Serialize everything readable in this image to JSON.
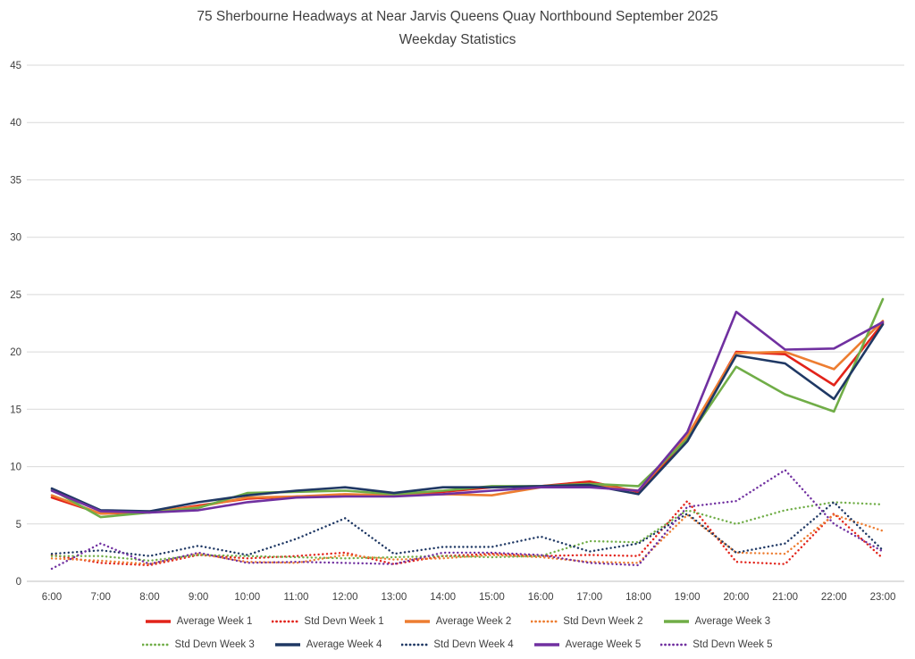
{
  "title": {
    "line1": "75 Sherbourne Headways at Near Jarvis Queens Quay Northbound September 2025",
    "line2": "Weekday Statistics"
  },
  "chart_data": {
    "type": "line",
    "title": "75 Sherbourne Headways at Near Jarvis Queens Quay Northbound September 2025 Weekday Statistics",
    "xlabel": "",
    "ylabel": "",
    "ylim": [
      0,
      45
    ],
    "ytick_step": 5,
    "grid": "horizontal",
    "legend_position": "bottom",
    "categories": [
      "6:00",
      "7:00",
      "8:00",
      "9:00",
      "10:00",
      "11:00",
      "12:00",
      "13:00",
      "14:00",
      "15:00",
      "16:00",
      "17:00",
      "18:00",
      "19:00",
      "20:00",
      "21:00",
      "22:00",
      "23:00"
    ],
    "series": [
      {
        "name": "Average Week 1",
        "color": "#e2231a",
        "dash": "solid",
        "values": [
          7.3,
          5.9,
          6.0,
          6.6,
          7.2,
          7.4,
          7.5,
          7.5,
          7.8,
          8.2,
          8.3,
          8.7,
          7.8,
          12.5,
          20.0,
          19.8,
          17.1,
          22.5
        ]
      },
      {
        "name": "Std Devn Week 1",
        "color": "#e2231a",
        "dash": "dotted",
        "values": [
          2.3,
          1.6,
          1.4,
          2.3,
          2.0,
          2.2,
          2.5,
          1.5,
          2.2,
          2.4,
          2.2,
          2.3,
          2.2,
          7.0,
          1.7,
          1.5,
          5.9,
          2.0
        ]
      },
      {
        "name": "Average Week 2",
        "color": "#ed7d31",
        "dash": "solid",
        "values": [
          7.5,
          5.9,
          6.1,
          6.5,
          7.3,
          7.4,
          7.6,
          7.5,
          7.6,
          7.5,
          8.2,
          8.4,
          7.9,
          12.7,
          19.9,
          20.0,
          18.5,
          22.7
        ]
      },
      {
        "name": "Std Devn Week 2",
        "color": "#ed7d31",
        "dash": "dotted",
        "values": [
          2.0,
          1.8,
          1.5,
          2.4,
          1.7,
          1.6,
          2.3,
          1.9,
          2.0,
          2.3,
          2.1,
          1.7,
          1.6,
          5.8,
          2.5,
          2.4,
          5.8,
          4.4
        ]
      },
      {
        "name": "Average Week 3",
        "color": "#70ad47",
        "dash": "solid",
        "values": [
          8.0,
          5.6,
          6.0,
          6.4,
          7.7,
          7.8,
          7.9,
          7.6,
          7.9,
          8.3,
          8.3,
          8.5,
          8.3,
          12.4,
          18.7,
          16.3,
          14.8,
          24.6
        ]
      },
      {
        "name": "Std Devn Week 3",
        "color": "#70ad47",
        "dash": "dotted",
        "values": [
          2.2,
          2.2,
          1.8,
          2.3,
          2.2,
          2.1,
          2.0,
          2.1,
          2.2,
          2.1,
          2.2,
          3.5,
          3.4,
          6.2,
          5.0,
          6.2,
          6.9,
          6.7
        ]
      },
      {
        "name": "Average Week 4",
        "color": "#1f3864",
        "dash": "solid",
        "values": [
          8.1,
          6.2,
          6.1,
          6.9,
          7.5,
          7.9,
          8.2,
          7.7,
          8.2,
          8.2,
          8.3,
          8.4,
          7.6,
          12.2,
          19.7,
          19.0,
          15.9,
          22.4
        ]
      },
      {
        "name": "Std Devn Week 4",
        "color": "#1f3864",
        "dash": "dotted",
        "values": [
          2.4,
          2.7,
          2.2,
          3.1,
          2.3,
          3.7,
          5.5,
          2.4,
          3.0,
          3.0,
          3.9,
          2.6,
          3.3,
          5.9,
          2.5,
          3.3,
          6.9,
          2.7
        ]
      },
      {
        "name": "Average Week 5",
        "color": "#7030a0",
        "dash": "solid",
        "values": [
          7.9,
          6.1,
          6.0,
          6.2,
          6.9,
          7.3,
          7.4,
          7.4,
          7.6,
          7.9,
          8.2,
          8.2,
          7.9,
          13.0,
          23.5,
          20.2,
          20.3,
          22.6
        ]
      },
      {
        "name": "Std Devn Week 5",
        "color": "#7030a0",
        "dash": "dotted",
        "values": [
          1.1,
          3.3,
          1.5,
          2.5,
          1.6,
          1.7,
          1.6,
          1.5,
          2.5,
          2.5,
          2.3,
          1.6,
          1.4,
          6.5,
          7.0,
          9.7,
          5.0,
          2.6
        ]
      }
    ]
  }
}
